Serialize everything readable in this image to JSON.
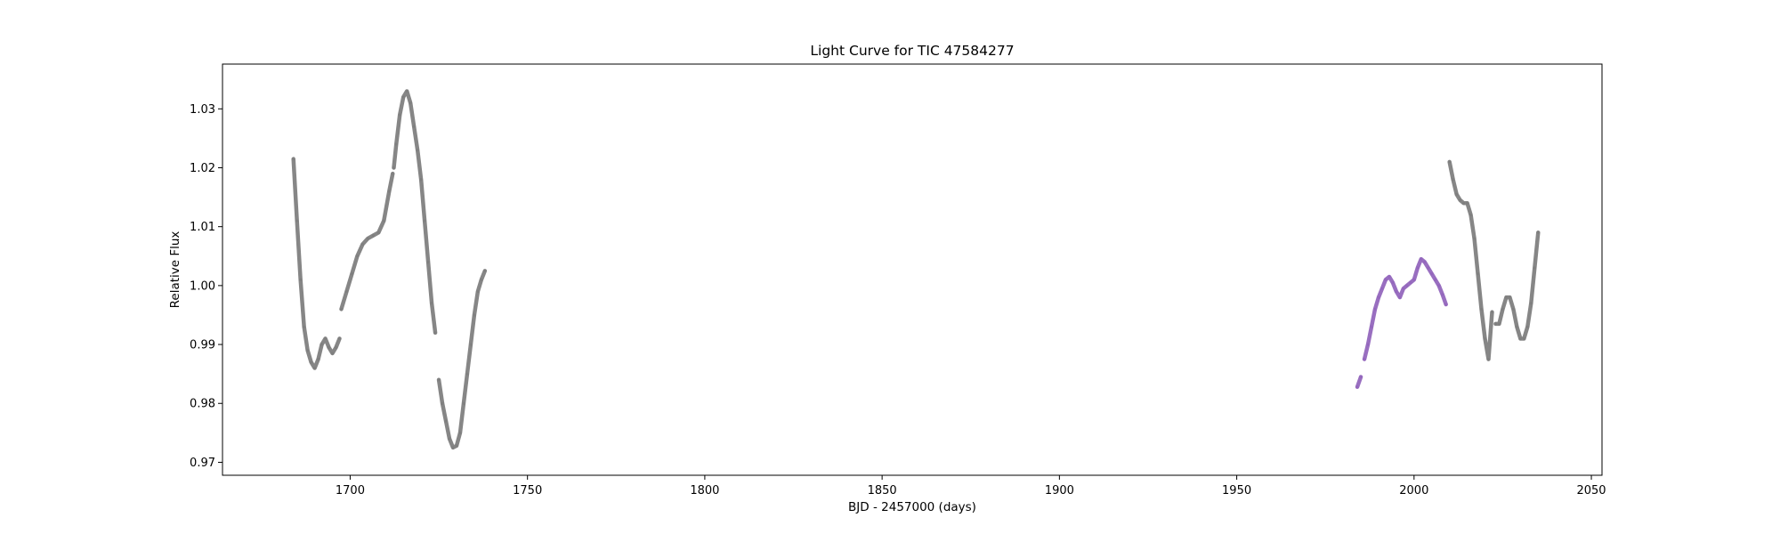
{
  "chart_data": {
    "type": "scatter",
    "title": "Light Curve for TIC 47584277",
    "xlabel": "BJD - 2457000 (days)",
    "ylabel": "Relative Flux",
    "xlim": [
      1664,
      2053
    ],
    "ylim": [
      0.9678,
      1.0376
    ],
    "xticks": [
      1700,
      1750,
      1800,
      1850,
      1900,
      1950,
      2000,
      2050
    ],
    "xtick_labels": [
      "1700",
      "1750",
      "1800",
      "1850",
      "1900",
      "1950",
      "2000",
      "2050"
    ],
    "yticks": [
      0.97,
      0.98,
      0.99,
      1.0,
      1.01,
      1.02,
      1.03
    ],
    "ytick_labels": [
      "0.97",
      "0.98",
      "0.99",
      "1.00",
      "1.01",
      "1.02",
      "1.03"
    ],
    "grid": false,
    "legend": "none",
    "series": [
      {
        "color": "#7f7f7f",
        "segments": [
          [
            [
              1684.0,
              1.0215
            ],
            [
              1685.0,
              1.011
            ],
            [
              1686.0,
              1.001
            ],
            [
              1687.0,
              0.993
            ],
            [
              1688.0,
              0.989
            ],
            [
              1689.0,
              0.987
            ],
            [
              1690.0,
              0.986
            ],
            [
              1691.0,
              0.9875
            ],
            [
              1692.0,
              0.99
            ],
            [
              1693.0,
              0.991
            ],
            [
              1694.0,
              0.9895
            ],
            [
              1695.0,
              0.9885
            ],
            [
              1696.0,
              0.9895
            ],
            [
              1697.0,
              0.991
            ]
          ],
          [
            [
              1697.5,
              0.996
            ],
            [
              1699.0,
              0.999
            ],
            [
              1700.5,
              1.002
            ],
            [
              1702.0,
              1.005
            ],
            [
              1703.5,
              1.007
            ],
            [
              1705.0,
              1.008
            ],
            [
              1706.5,
              1.0085
            ],
            [
              1708.0,
              1.009
            ],
            [
              1709.5,
              1.011
            ],
            [
              1711.0,
              1.016
            ],
            [
              1712.0,
              1.019
            ]
          ],
          [
            [
              1712.3,
              1.02
            ],
            [
              1713.0,
              1.024
            ],
            [
              1714.0,
              1.029
            ],
            [
              1715.0,
              1.032
            ],
            [
              1716.0,
              1.033
            ],
            [
              1717.0,
              1.031
            ],
            [
              1718.0,
              1.027
            ],
            [
              1719.0,
              1.023
            ],
            [
              1720.0,
              1.018
            ],
            [
              1721.0,
              1.011
            ],
            [
              1722.0,
              1.004
            ],
            [
              1723.0,
              0.997
            ],
            [
              1724.0,
              0.992
            ]
          ],
          [
            [
              1725.0,
              0.984
            ],
            [
              1726.0,
              0.98
            ],
            [
              1727.0,
              0.977
            ],
            [
              1728.0,
              0.974
            ],
            [
              1729.0,
              0.9725
            ],
            [
              1730.0,
              0.9728
            ],
            [
              1731.0,
              0.975
            ],
            [
              1732.0,
              0.98
            ],
            [
              1733.0,
              0.985
            ],
            [
              1734.0,
              0.99
            ],
            [
              1735.0,
              0.995
            ],
            [
              1736.0,
              0.999
            ],
            [
              1737.0,
              1.001
            ],
            [
              1738.0,
              1.0025
            ]
          ],
          [
            [
              2010.0,
              1.021
            ],
            [
              2011.0,
              1.018
            ],
            [
              2012.0,
              1.0155
            ],
            [
              2013.0,
              1.0145
            ],
            [
              2014.0,
              1.014
            ],
            [
              2015.0,
              1.014
            ],
            [
              2016.0,
              1.012
            ],
            [
              2017.0,
              1.008
            ],
            [
              2018.0,
              1.002
            ],
            [
              2019.0,
              0.996
            ],
            [
              2020.0,
              0.991
            ],
            [
              2021.0,
              0.9875
            ],
            [
              2022.0,
              0.9955
            ]
          ],
          [
            [
              2023.0,
              0.9935
            ],
            [
              2024.0,
              0.9935
            ],
            [
              2025.0,
              0.996
            ],
            [
              2026.0,
              0.998
            ],
            [
              2027.0,
              0.998
            ],
            [
              2028.0,
              0.996
            ],
            [
              2029.0,
              0.993
            ],
            [
              2030.0,
              0.991
            ],
            [
              2031.0,
              0.991
            ],
            [
              2032.0,
              0.993
            ],
            [
              2033.0,
              0.997
            ],
            [
              2034.0,
              1.003
            ],
            [
              2035.0,
              1.009
            ]
          ]
        ]
      },
      {
        "color": "#9467bd",
        "segments": [
          [
            [
              1984.0,
              0.9828
            ],
            [
              1985.0,
              0.9845
            ]
          ],
          [
            [
              1986.0,
              0.9875
            ],
            [
              1987.0,
              0.99
            ],
            [
              1988.0,
              0.993
            ],
            [
              1989.0,
              0.996
            ],
            [
              1990.0,
              0.998
            ],
            [
              1991.0,
              0.9995
            ],
            [
              1992.0,
              1.001
            ],
            [
              1993.0,
              1.0015
            ],
            [
              1994.0,
              1.0005
            ],
            [
              1995.0,
              0.999
            ],
            [
              1996.0,
              0.998
            ],
            [
              1997.0,
              0.9995
            ],
            [
              1998.0,
              1.0
            ],
            [
              1999.0,
              1.0005
            ],
            [
              2000.0,
              1.001
            ],
            [
              2001.0,
              1.003
            ],
            [
              2002.0,
              1.0045
            ],
            [
              2003.0,
              1.004
            ],
            [
              2004.0,
              1.003
            ],
            [
              2005.0,
              1.002
            ],
            [
              2006.0,
              1.001
            ],
            [
              2007.0,
              1.0
            ],
            [
              2008.0,
              0.9985
            ],
            [
              2009.0,
              0.9968
            ]
          ]
        ]
      }
    ]
  }
}
